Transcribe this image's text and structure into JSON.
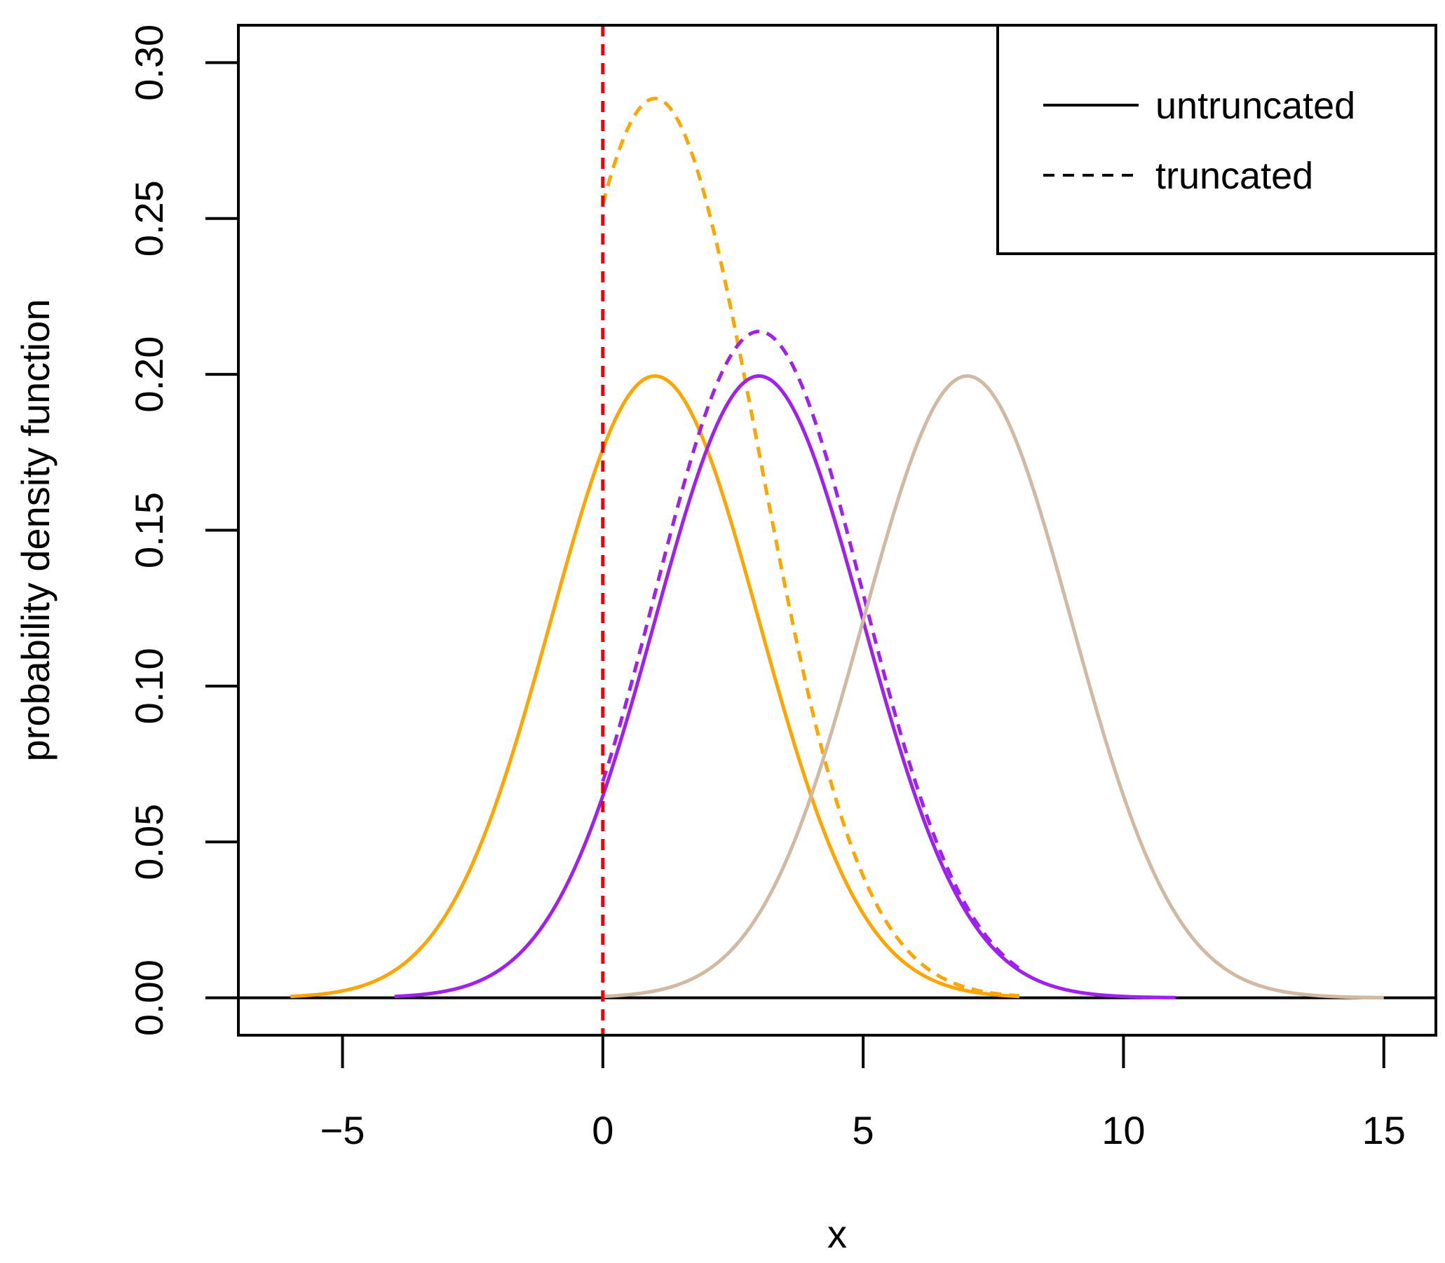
{
  "chart_data": {
    "type": "line",
    "title": "",
    "xlabel": "x",
    "ylabel": "probability density function",
    "xlim": [
      -7,
      16
    ],
    "ylim": [
      -0.012,
      0.312
    ],
    "x_ticks": [
      -5,
      0,
      5,
      10,
      15
    ],
    "x_tick_labels": [
      "−5",
      "0",
      "5",
      "10",
      "15"
    ],
    "y_ticks": [
      0.0,
      0.05,
      0.1,
      0.15,
      0.2,
      0.25,
      0.3
    ],
    "y_tick_labels": [
      "0.00",
      "0.05",
      "0.10",
      "0.15",
      "0.20",
      "0.25",
      "0.30"
    ],
    "grid": false,
    "baseline_y": 0,
    "truncation_line": {
      "x": 0,
      "color": "#e8000b",
      "style": "dashed"
    },
    "series": [
      {
        "name": "orange untruncated",
        "mean": 1,
        "sd": 2,
        "truncated_at": null,
        "x_range": [
          -6,
          8
        ],
        "color": "#ffa500",
        "style": "solid"
      },
      {
        "name": "orange truncated",
        "mean": 1,
        "sd": 2,
        "truncated_at": 0,
        "x_range": [
          0,
          8
        ],
        "color": "#ffa500",
        "style": "dashed"
      },
      {
        "name": "purple untruncated",
        "mean": 3,
        "sd": 2,
        "truncated_at": null,
        "x_range": [
          -4,
          11
        ],
        "color": "#a020f0",
        "style": "solid"
      },
      {
        "name": "purple truncated",
        "mean": 3,
        "sd": 2,
        "truncated_at": 0,
        "x_range": [
          0,
          8
        ],
        "color": "#a020f0",
        "style": "dashed"
      },
      {
        "name": "tan untruncated",
        "mean": 7,
        "sd": 2,
        "truncated_at": null,
        "x_range": [
          0,
          15
        ],
        "color": "#d2b9a3",
        "style": "solid"
      }
    ],
    "legend": {
      "position": "top-right",
      "entries": [
        {
          "label": "untruncated",
          "style": "solid",
          "color": "#000000"
        },
        {
          "label": "truncated",
          "style": "dashed",
          "color": "#000000"
        }
      ]
    }
  }
}
